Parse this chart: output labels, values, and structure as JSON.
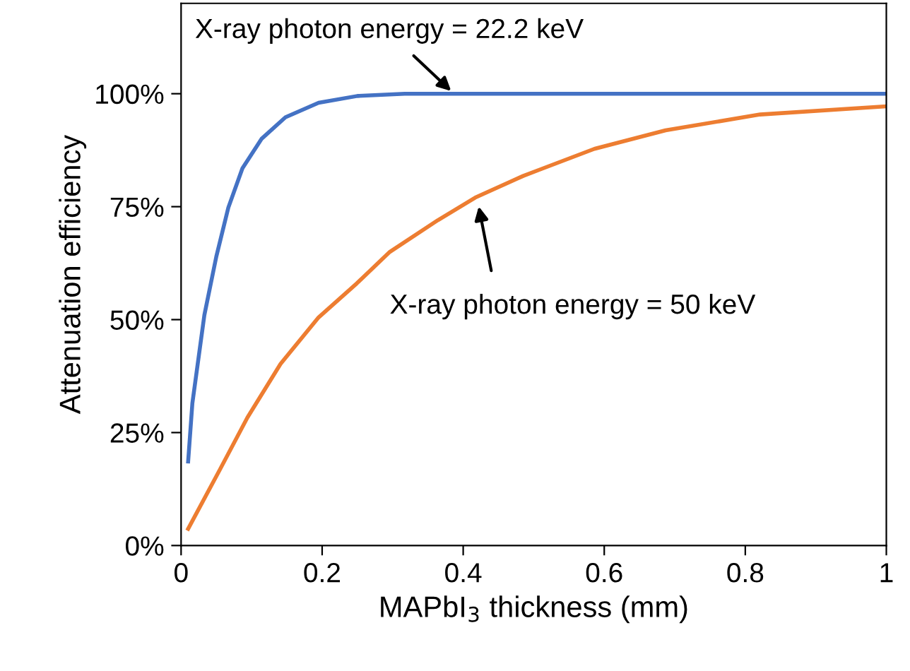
{
  "chart_data": {
    "type": "line",
    "xlabel": "MAPbI$_{3}$ thickness (mm)",
    "ylabel": "Attenuation efficiency",
    "xlim": [
      0,
      1
    ],
    "ylim": [
      0,
      120
    ],
    "xticks": [
      0,
      0.2,
      0.4,
      0.6,
      0.8,
      1
    ],
    "yticks": [
      {
        "value": 0,
        "label": "0%"
      },
      {
        "value": 25,
        "label": "25%"
      },
      {
        "value": 50,
        "label": "50%"
      },
      {
        "value": 75,
        "label": "75%"
      },
      {
        "value": 100,
        "label": "100%"
      }
    ],
    "grid": false,
    "marker": "none",
    "line_style": "solid",
    "series": [
      {
        "color": "#4472c4",
        "x": [
          0.01,
          0.016,
          0.033,
          0.05,
          0.067,
          0.087,
          0.114,
          0.148,
          0.195,
          0.25,
          0.317,
          1.0
        ],
        "values": [
          18.6,
          31.5,
          51,
          64,
          74.8,
          83.5,
          90,
          94.8,
          98,
          99.5,
          100,
          100
        ]
      },
      {
        "color": "#ed7d31",
        "x": [
          0.01,
          0.054,
          0.094,
          0.141,
          0.195,
          0.249,
          0.296,
          0.364,
          0.417,
          0.485,
          0.586,
          0.687,
          0.821,
          1.0
        ],
        "values": [
          3.7,
          16.5,
          28.3,
          40.2,
          50.5,
          58,
          65,
          72,
          77,
          81.8,
          87.8,
          91.9,
          95.4,
          97.2
        ]
      }
    ],
    "annotations": [
      {
        "text": "X-ray photon energy = 22.2 keV",
        "x": 0.387,
        "y": 100
      },
      {
        "text": "X-ray photon energy = 50 keV",
        "x": 0.421,
        "y": 75.9
      }
    ]
  }
}
